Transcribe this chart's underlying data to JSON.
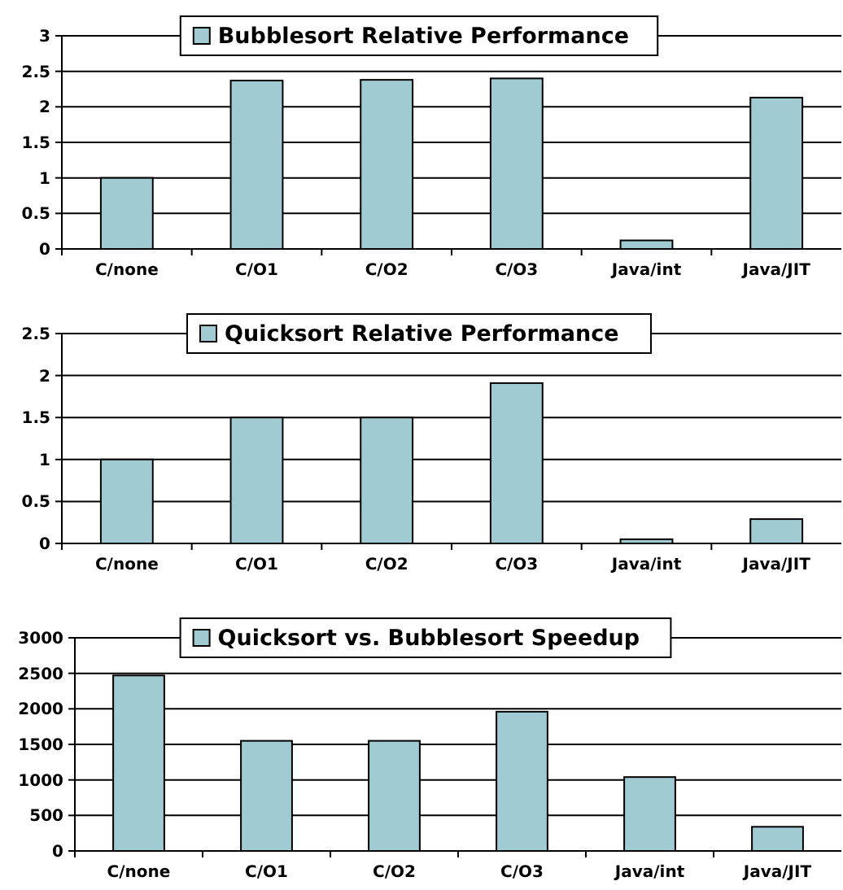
{
  "chart_data": [
    {
      "type": "bar",
      "categories": [
        "C/none",
        "C/O1",
        "C/O2",
        "C/O3",
        "Java/int",
        "Java/JIT"
      ],
      "series": [
        {
          "name": "Bubblesort Relative Performance",
          "color": "#a0cbd3",
          "values": [
            1.0,
            2.37,
            2.38,
            2.4,
            0.12,
            2.13
          ]
        }
      ],
      "ylim": [
        0,
        3
      ],
      "yticks": [
        0,
        0.5,
        1,
        1.5,
        2,
        2.5,
        3
      ],
      "grid": "y",
      "legend": "top"
    },
    {
      "type": "bar",
      "categories": [
        "C/none",
        "C/O1",
        "C/O2",
        "C/O3",
        "Java/int",
        "Java/JIT"
      ],
      "series": [
        {
          "name": "Quicksort Relative Performance",
          "color": "#a0cbd3",
          "values": [
            1.0,
            1.5,
            1.5,
            1.91,
            0.05,
            0.29
          ]
        }
      ],
      "ylim": [
        0,
        2.5
      ],
      "yticks": [
        0,
        0.5,
        1,
        1.5,
        2,
        2.5
      ],
      "grid": "y",
      "legend": "top"
    },
    {
      "type": "bar",
      "categories": [
        "C/none",
        "C/O1",
        "C/O2",
        "C/O3",
        "Java/int",
        "Java/JIT"
      ],
      "series": [
        {
          "name": "Quicksort vs. Bubblesort Speedup",
          "color": "#a0cbd3",
          "values": [
            2470,
            1550,
            1550,
            1960,
            1040,
            340
          ]
        }
      ],
      "ylim": [
        0,
        3000
      ],
      "yticks": [
        0,
        500,
        1000,
        1500,
        2000,
        2500,
        3000
      ],
      "grid": "y",
      "legend": "top"
    }
  ]
}
